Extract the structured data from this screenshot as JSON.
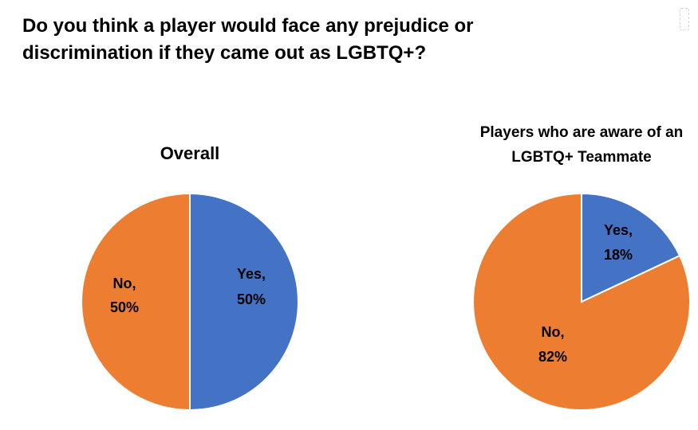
{
  "title_lines": [
    "Do you think a player would face any prejudice or",
    "discrimination if they came out as LGBTQ+?"
  ],
  "colors": {
    "yes": "#4472C4",
    "no": "#ED7D31"
  },
  "chart_data": [
    {
      "type": "pie",
      "title": "Overall",
      "categories": [
        "Yes",
        "No"
      ],
      "values": [
        50,
        50
      ],
      "labels": [
        [
          "Yes,",
          "50%"
        ],
        [
          "No,",
          "50%"
        ]
      ]
    },
    {
      "type": "pie",
      "title_lines": [
        "Players who are aware of an",
        "LGBTQ+ Teammate"
      ],
      "categories": [
        "Yes",
        "No"
      ],
      "values": [
        18,
        82
      ],
      "labels": [
        [
          "Yes,",
          "18%"
        ],
        [
          "No,",
          "82%"
        ]
      ]
    }
  ]
}
